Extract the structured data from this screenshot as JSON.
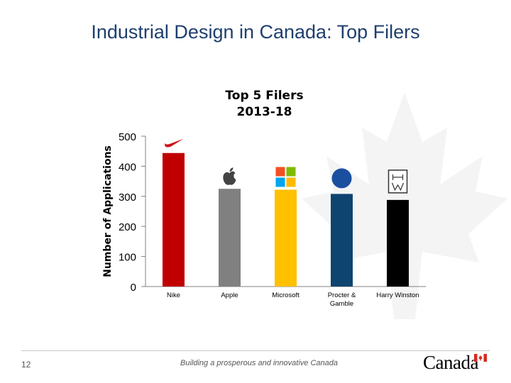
{
  "slide": {
    "title": "Industrial Design in Canada: Top Filers",
    "page_number": "12",
    "footer_text": "Building a prosperous and innovative Canada",
    "wordmark": "Canada"
  },
  "chart_data": {
    "type": "bar",
    "title_lines": [
      "Top 5 Filers",
      "2013-18"
    ],
    "ylabel": "Number of Applications",
    "ylim": [
      0,
      500
    ],
    "yticks": [
      0,
      100,
      200,
      300,
      400,
      500
    ],
    "categories": [
      "Nike",
      "Apple",
      "Microsoft",
      "Procter & Gamble",
      "Harry Winston"
    ],
    "category_label_lines": [
      [
        "Nike"
      ],
      [
        "Apple"
      ],
      [
        "Microsoft"
      ],
      [
        "Procter &",
        "Gamble"
      ],
      [
        "Harry Winston"
      ]
    ],
    "values": [
      444,
      325,
      322,
      308,
      288
    ],
    "colors": [
      "#c00000",
      "#808080",
      "#ffc000",
      "#0e4470",
      "#000000"
    ],
    "logos": [
      "nike-swoosh",
      "apple-logo",
      "microsoft-logo",
      "pg-logo",
      "harry-winston-logo"
    ],
    "grid": false,
    "legend": "none"
  }
}
